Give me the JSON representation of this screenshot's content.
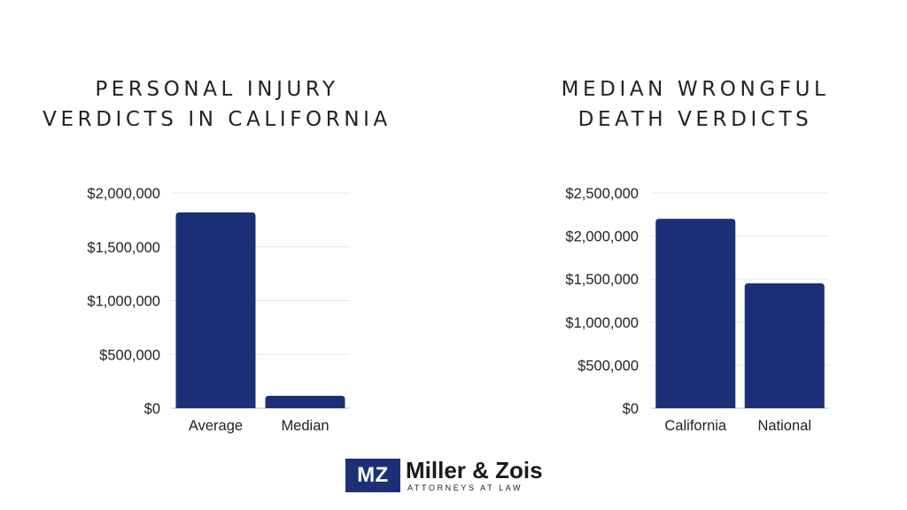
{
  "chart_data": [
    {
      "type": "bar",
      "title_lines": [
        "PERSONAL INJURY",
        "VERDICTS IN CALIFORNIA"
      ],
      "categories": [
        "Average",
        "Median"
      ],
      "values": [
        1820000,
        115000
      ],
      "yticks": [
        "$0",
        "$500,000",
        "$1,000,000",
        "$1,500,000",
        "$2,000,000"
      ],
      "ytick_values": [
        0,
        500000,
        1000000,
        1500000,
        2000000
      ],
      "ylim": [
        0,
        2000000
      ],
      "grid": true,
      "bar_color": "#1c3077"
    },
    {
      "type": "bar",
      "title_lines": [
        "MEDIAN WRONGFUL",
        "DEATH VERDICTS"
      ],
      "categories": [
        "California",
        "National"
      ],
      "values": [
        2200000,
        1450000
      ],
      "yticks": [
        "$0",
        "$500,000",
        "$1,000,000",
        "$1,500,000",
        "$2,000,000",
        "$2,500,000"
      ],
      "ytick_values": [
        0,
        500000,
        1000000,
        1500000,
        2000000,
        2500000
      ],
      "ylim": [
        0,
        2500000
      ],
      "grid": true,
      "bar_color": "#1c3077"
    }
  ],
  "logo": {
    "mark": "MZ",
    "name": "Miller & Zois",
    "tagline": "ATTORNEYS AT LAW",
    "color": "#1c3077"
  }
}
